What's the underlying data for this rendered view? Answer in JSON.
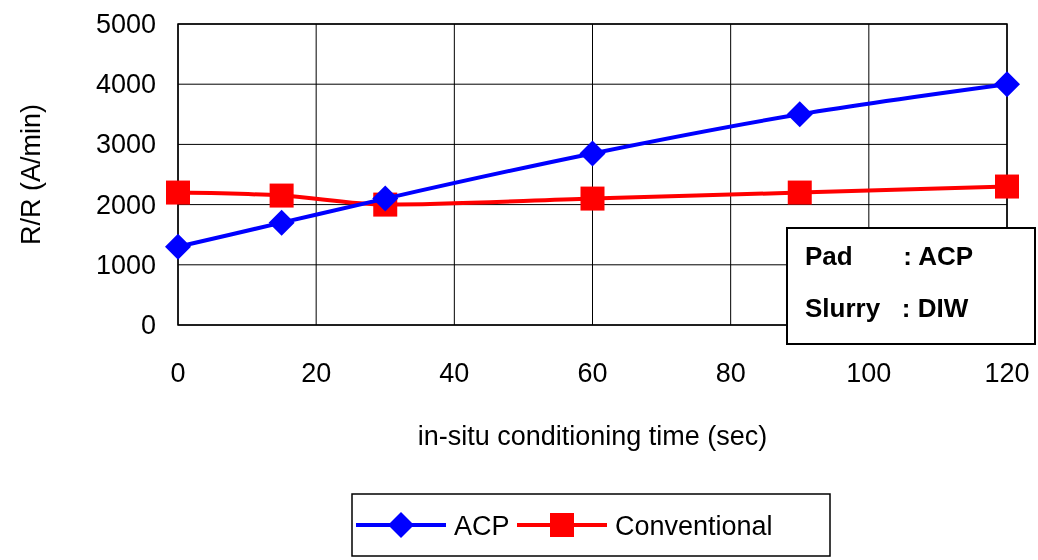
{
  "chart_data": {
    "type": "line",
    "xlabel": "in-situ conditioning time (sec)",
    "ylabel": "R/R  (A/min)",
    "x": [
      0,
      15,
      30,
      60,
      90,
      120
    ],
    "series": [
      {
        "name": "ACP",
        "color": "#0000ff",
        "marker": "diamond",
        "values": [
          1300,
          1700,
          2100,
          2850,
          3500,
          4000
        ]
      },
      {
        "name": "Conventional",
        "color": "#ff0000",
        "marker": "square",
        "values": [
          2200,
          2150,
          2000,
          2100,
          2200,
          2300
        ]
      }
    ],
    "xlim": [
      0,
      120
    ],
    "xticks": [
      0,
      20,
      40,
      60,
      80,
      100,
      120
    ],
    "ylim": [
      0,
      5000
    ],
    "yticks": [
      0,
      1000,
      2000,
      3000,
      4000,
      5000
    ],
    "grid": true,
    "legend": "bottom",
    "annotations": [
      "Pad       : ACP",
      "Slurry   : DIW"
    ]
  }
}
